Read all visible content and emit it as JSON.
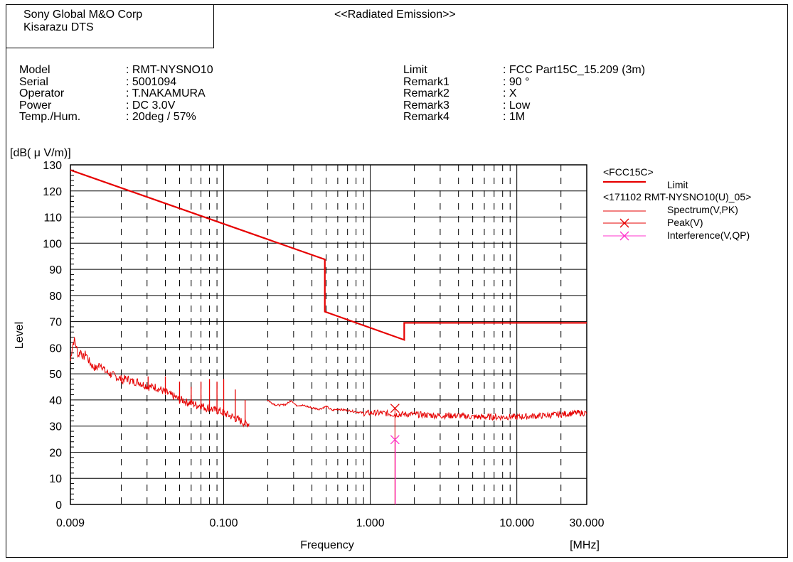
{
  "header": {
    "org_line1": "Sony Global M&O Corp",
    "org_line2": "Kisarazu DTS",
    "title": "<<Radiated Emission>>"
  },
  "info_left": [
    {
      "label": "Model",
      "value": ": RMT-NYSNO10"
    },
    {
      "label": "Serial",
      "value": ": 5001094"
    },
    {
      "label": "Operator",
      "value": ": T.NAKAMURA"
    },
    {
      "label": "Power",
      "value": ": DC 3.0V"
    },
    {
      "label": "Temp./Hum.",
      "value": ": 20deg / 57%"
    }
  ],
  "info_right": [
    {
      "label": "Limit",
      "value": ": FCC Part15C_15.209 (3m)"
    },
    {
      "label": "Remark1",
      "value": ": 90 °"
    },
    {
      "label": "Remark2",
      "value": ": X"
    },
    {
      "label": "Remark3",
      "value": ": Low"
    },
    {
      "label": "Remark4",
      "value": ": 1M"
    }
  ],
  "colors": {
    "limit": "#e60000",
    "spectrum": "#e60000",
    "peak": "#e60000",
    "interference": "#ff33cc",
    "grid": "#000000"
  },
  "chart_data": {
    "type": "line",
    "x_scale": "log",
    "xlim": [
      0.009,
      30
    ],
    "ylim": [
      0,
      130
    ],
    "yunit": "[dB( μ V/m)]",
    "ylabel": "Level",
    "xlabel": "Frequency",
    "xunit": "[MHz]",
    "x_ticks": [
      {
        "value": 0.009,
        "label": "0.009"
      },
      {
        "value": 0.1,
        "label": "0.100"
      },
      {
        "value": 1,
        "label": "1.000"
      },
      {
        "value": 10,
        "label": "10.000"
      },
      {
        "value": 30,
        "label": "30.000"
      }
    ],
    "y_ticks": [
      0,
      10,
      20,
      30,
      40,
      50,
      60,
      70,
      80,
      90,
      100,
      110,
      120,
      130
    ],
    "legend": {
      "groups": [
        {
          "title": "<FCC15C>",
          "items": [
            {
              "label": "Limit",
              "series": "limit"
            }
          ]
        },
        {
          "title": "<171102 RMT-NYSNO10(U)_05>",
          "items": [
            {
              "label": "Spectrum(V,PK)",
              "series": "spectrum"
            },
            {
              "label": "Peak(V)",
              "series": "peak"
            },
            {
              "label": "Interference(V,QP)",
              "series": "interference"
            }
          ]
        }
      ]
    },
    "series": {
      "limit": {
        "x": [
          0.009,
          0.49,
          0.49,
          1.705,
          1.705,
          30
        ],
        "y": [
          128,
          93.8,
          73.8,
          63,
          69.5,
          69.5
        ]
      },
      "spectrum_segment1": {
        "x": [
          0.009,
          0.0093,
          0.0096,
          0.0099,
          0.0102,
          0.0106,
          0.011,
          0.0115,
          0.012,
          0.0127,
          0.0135,
          0.0145,
          0.0155,
          0.0168,
          0.0182,
          0.02,
          0.022,
          0.024,
          0.026,
          0.028,
          0.031,
          0.034,
          0.037,
          0.04,
          0.043,
          0.047,
          0.05,
          0.053,
          0.056,
          0.06,
          0.065,
          0.07,
          0.075,
          0.08,
          0.086,
          0.092,
          0.1,
          0.11,
          0.12,
          0.13,
          0.14,
          0.15
        ],
        "y": [
          55,
          61,
          63,
          60,
          57,
          59,
          56,
          58,
          55,
          53,
          52,
          54,
          51,
          50,
          49,
          48,
          48,
          47,
          47,
          46,
          45,
          45,
          44,
          43,
          42,
          41,
          40,
          40,
          39,
          39,
          38,
          38,
          37,
          37,
          36,
          36,
          35,
          34,
          33,
          32,
          31,
          31
        ],
        "spurs": [
          {
            "x": 0.0205,
            "y": 46
          },
          {
            "x": 0.0305,
            "y": 49
          },
          {
            "x": 0.04,
            "y": 49
          },
          {
            "x": 0.05,
            "y": 47
          },
          {
            "x": 0.06,
            "y": 45
          },
          {
            "x": 0.07,
            "y": 47
          },
          {
            "x": 0.08,
            "y": 48
          },
          {
            "x": 0.09,
            "y": 47
          },
          {
            "x": 0.1,
            "y": 48
          },
          {
            "x": 0.12,
            "y": 44
          },
          {
            "x": 0.14,
            "y": 40
          }
        ]
      },
      "spectrum_segment2": {
        "x": [
          0.15,
          0.17,
          0.19,
          0.21,
          0.23,
          0.25,
          0.27,
          0.29,
          0.31,
          0.34,
          0.37,
          0.4,
          0.45,
          0.5,
          0.55,
          0.6,
          0.7,
          0.8,
          0.9,
          1.0,
          1.2,
          1.474,
          2,
          3,
          4,
          5,
          7,
          10,
          15,
          20,
          25,
          30
        ],
        "y": [
          45,
          43,
          41,
          39,
          38,
          38,
          38.5,
          40,
          38,
          38,
          37.5,
          37,
          36.5,
          37.5,
          36,
          36.5,
          36,
          35.5,
          35,
          35,
          35,
          34.5,
          34.5,
          34,
          34,
          33.5,
          33.5,
          33.5,
          34,
          34.5,
          35,
          35
        ]
      },
      "peak": {
        "x": 1.474,
        "y": 36.8
      },
      "interference": {
        "x": 1.474,
        "y": 24.8
      }
    }
  }
}
